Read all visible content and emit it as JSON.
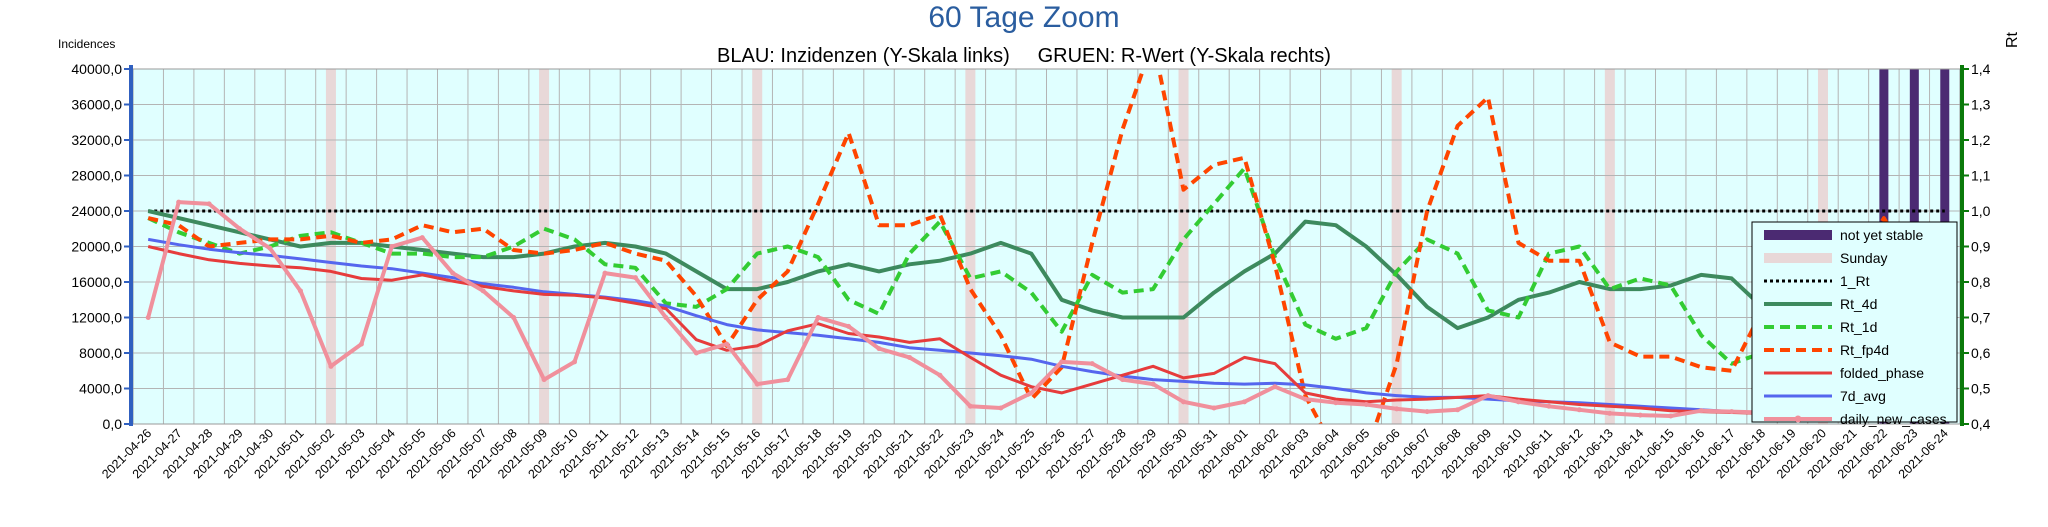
{
  "chart_data": {
    "type": "line",
    "title": "60 Tage Zoom",
    "subtitle": "BLAU: Inzidenzen (Y-Skala links)     GRUEN: R-Wert (Y-Skala rechts)",
    "ylabel_left": "Incidences",
    "ylabel_right": "Rt",
    "ylim_left": [
      0,
      40000
    ],
    "ylim_right": [
      0.4,
      1.4
    ],
    "yticks_left": [
      "0,0",
      "4000,0",
      "8000,0",
      "12000,0",
      "16000,0",
      "20000,0",
      "24000,0",
      "28000,0",
      "32000,0",
      "36000,0",
      "40000,0"
    ],
    "yticks_right": [
      "0,4",
      "0,5",
      "0,6",
      "0,7",
      "0,8",
      "0,9",
      "1,0",
      "1,1",
      "1,2",
      "1,3",
      "1,4"
    ],
    "categories": [
      "2021-04-26",
      "2021-04-27",
      "2021-04-28",
      "2021-04-29",
      "2021-04-30",
      "2021-05-01",
      "2021-05-02",
      "2021-05-03",
      "2021-05-04",
      "2021-05-05",
      "2021-05-06",
      "2021-05-07",
      "2021-05-08",
      "2021-05-09",
      "2021-05-10",
      "2021-05-11",
      "2021-05-12",
      "2021-05-13",
      "2021-05-14",
      "2021-05-15",
      "2021-05-16",
      "2021-05-17",
      "2021-05-18",
      "2021-05-19",
      "2021-05-20",
      "2021-05-21",
      "2021-05-22",
      "2021-05-23",
      "2021-05-24",
      "2021-05-25",
      "2021-05-26",
      "2021-05-27",
      "2021-05-28",
      "2021-05-29",
      "2021-05-30",
      "2021-05-31",
      "2021-06-01",
      "2021-06-02",
      "2021-06-03",
      "2021-06-04",
      "2021-06-05",
      "2021-06-06",
      "2021-06-07",
      "2021-06-08",
      "2021-06-09",
      "2021-06-10",
      "2021-06-11",
      "2021-06-12",
      "2021-06-13",
      "2021-06-14",
      "2021-06-15",
      "2021-06-16",
      "2021-06-17",
      "2021-06-18",
      "2021-06-19",
      "2021-06-20",
      "2021-06-21",
      "2021-06-22",
      "2021-06-23",
      "2021-06-24"
    ],
    "sundays": [
      "2021-05-02",
      "2021-05-09",
      "2021-05-16",
      "2021-05-23",
      "2021-05-30",
      "2021-06-06",
      "2021-06-13",
      "2021-06-20"
    ],
    "not_yet_stable": [
      "2021-06-22",
      "2021-06-23",
      "2021-06-24"
    ],
    "grid": true,
    "legend_position": "right",
    "series": [
      {
        "name": "not yet stable",
        "kind": "bar",
        "color": "#4b2a72"
      },
      {
        "name": "Sunday",
        "kind": "bar",
        "color": "#e8d8d8"
      },
      {
        "name": "1_Rt",
        "axis": "right",
        "color": "#000000",
        "dash": "dot",
        "width": 3,
        "values": [
          1,
          1,
          1,
          1,
          1,
          1,
          1,
          1,
          1,
          1,
          1,
          1,
          1,
          1,
          1,
          1,
          1,
          1,
          1,
          1,
          1,
          1,
          1,
          1,
          1,
          1,
          1,
          1,
          1,
          1,
          1,
          1,
          1,
          1,
          1,
          1,
          1,
          1,
          1,
          1,
          1,
          1,
          1,
          1,
          1,
          1,
          1,
          1,
          1,
          1,
          1,
          1,
          1,
          1,
          1,
          1,
          1,
          1,
          1,
          1
        ]
      },
      {
        "name": "Rt_4d",
        "axis": "right",
        "color": "#3d8a5e",
        "dash": "solid",
        "width": 4,
        "values": [
          1.0,
          0.98,
          0.96,
          0.94,
          0.92,
          0.9,
          0.91,
          0.91,
          0.9,
          0.89,
          0.88,
          0.87,
          0.87,
          0.88,
          0.9,
          0.91,
          0.9,
          0.88,
          0.83,
          0.78,
          0.78,
          0.8,
          0.83,
          0.85,
          0.83,
          0.85,
          0.86,
          0.88,
          0.91,
          0.88,
          0.75,
          0.72,
          0.7,
          0.7,
          0.7,
          0.77,
          0.83,
          0.88,
          0.97,
          0.96,
          0.9,
          0.82,
          0.73,
          0.67,
          0.7,
          0.75,
          0.77,
          0.8,
          0.78,
          0.78,
          0.79,
          0.82,
          0.81,
          0.73,
          0.7,
          0.67,
          0.64,
          0.61,
          0.62,
          0.7
        ]
      },
      {
        "name": "Rt_1d",
        "axis": "right",
        "color": "#33cc33",
        "dash": "dash",
        "width": 4,
        "values": [
          0.98,
          0.94,
          0.91,
          0.88,
          0.9,
          0.93,
          0.94,
          0.91,
          0.88,
          0.88,
          0.87,
          0.87,
          0.9,
          0.95,
          0.92,
          0.85,
          0.84,
          0.74,
          0.73,
          0.78,
          0.88,
          0.9,
          0.87,
          0.75,
          0.71,
          0.88,
          0.97,
          0.81,
          0.83,
          0.77,
          0.66,
          0.82,
          0.77,
          0.78,
          0.92,
          1.02,
          1.12,
          0.87,
          0.68,
          0.64,
          0.67,
          0.83,
          0.92,
          0.88,
          0.72,
          0.7,
          0.88,
          0.9,
          0.78,
          0.81,
          0.79,
          0.65,
          0.57,
          0.6,
          0.62,
          0.64,
          0.67,
          0.77,
          0.85,
          0.86
        ]
      },
      {
        "name": "Rt_fp4d",
        "axis": "right",
        "color": "#ff4500",
        "dash": "dash",
        "width": 4,
        "values": [
          0.98,
          0.96,
          0.9,
          0.91,
          0.92,
          0.92,
          0.93,
          0.91,
          0.92,
          0.96,
          0.94,
          0.95,
          0.89,
          0.88,
          0.89,
          0.91,
          0.88,
          0.86,
          0.76,
          0.62,
          0.75,
          0.83,
          1.02,
          1.22,
          0.96,
          0.96,
          0.99,
          0.78,
          0.65,
          0.47,
          0.56,
          0.91,
          1.23,
          1.48,
          1.06,
          1.13,
          1.15,
          0.85,
          0.48,
          0.32,
          0.32,
          0.57,
          1.0,
          1.24,
          1.32,
          0.91,
          0.86,
          0.86,
          0.63,
          0.59,
          0.59,
          0.56,
          0.55,
          0.72,
          0.74,
          0.87,
          0.83,
          0.98,
          0.83,
          0.72
        ]
      },
      {
        "name": "folded_phase",
        "axis": "left",
        "color": "#e63c3c",
        "dash": "solid",
        "width": 3,
        "values": [
          20000,
          19200,
          18500,
          18100,
          17800,
          17600,
          17200,
          16400,
          16200,
          16800,
          16100,
          15500,
          15000,
          14600,
          14500,
          14200,
          13600,
          13000,
          9500,
          8300,
          8800,
          10500,
          11300,
          10200,
          9800,
          9200,
          9600,
          7500,
          5500,
          4200,
          3500,
          4500,
          5500,
          6500,
          5200,
          5700,
          7500,
          6800,
          3500,
          2800,
          2500,
          2700,
          2800,
          3000,
          3200,
          2800,
          2500,
          2200,
          2000,
          1800,
          1500,
          1400,
          1300,
          1200,
          1100,
          1000,
          1050,
          1200,
          1100,
          900
        ]
      },
      {
        "name": "7d_avg",
        "axis": "left",
        "color": "#5566ee",
        "dash": "solid",
        "width": 3,
        "values": [
          20800,
          20200,
          19700,
          19300,
          19000,
          18600,
          18200,
          17800,
          17500,
          17000,
          16500,
          15800,
          15400,
          14900,
          14600,
          14300,
          13900,
          13300,
          12200,
          11200,
          10600,
          10300,
          10000,
          9600,
          9200,
          8600,
          8300,
          8000,
          7700,
          7300,
          6500,
          5900,
          5400,
          5000,
          4800,
          4600,
          4500,
          4600,
          4400,
          4000,
          3500,
          3200,
          3000,
          3000,
          2800,
          2600,
          2500,
          2400,
          2200,
          2000,
          1800,
          1600,
          1400,
          1300,
          1200,
          1100,
          1050,
          1000,
          950,
          900
        ]
      },
      {
        "name": "daily_new_cases",
        "axis": "left",
        "color": "#f0909c",
        "dash": "solid",
        "width": 4,
        "marker": true,
        "values": [
          12000,
          25000,
          24800,
          22000,
          19800,
          15000,
          6500,
          9000,
          20000,
          21000,
          17000,
          15000,
          12000,
          5000,
          7000,
          17000,
          16500,
          12000,
          8000,
          9000,
          4500,
          5000,
          12000,
          11000,
          8500,
          7500,
          5500,
          2000,
          1800,
          3500,
          7000,
          6800,
          5000,
          4500,
          2500,
          1800,
          2500,
          4200,
          2800,
          2400,
          2200,
          1700,
          1400,
          1600,
          3200,
          2500,
          2000,
          1600,
          1200,
          1000,
          900,
          1500,
          1400,
          1300,
          1000,
          800,
          700,
          1400,
          1000,
          800
        ]
      }
    ]
  }
}
